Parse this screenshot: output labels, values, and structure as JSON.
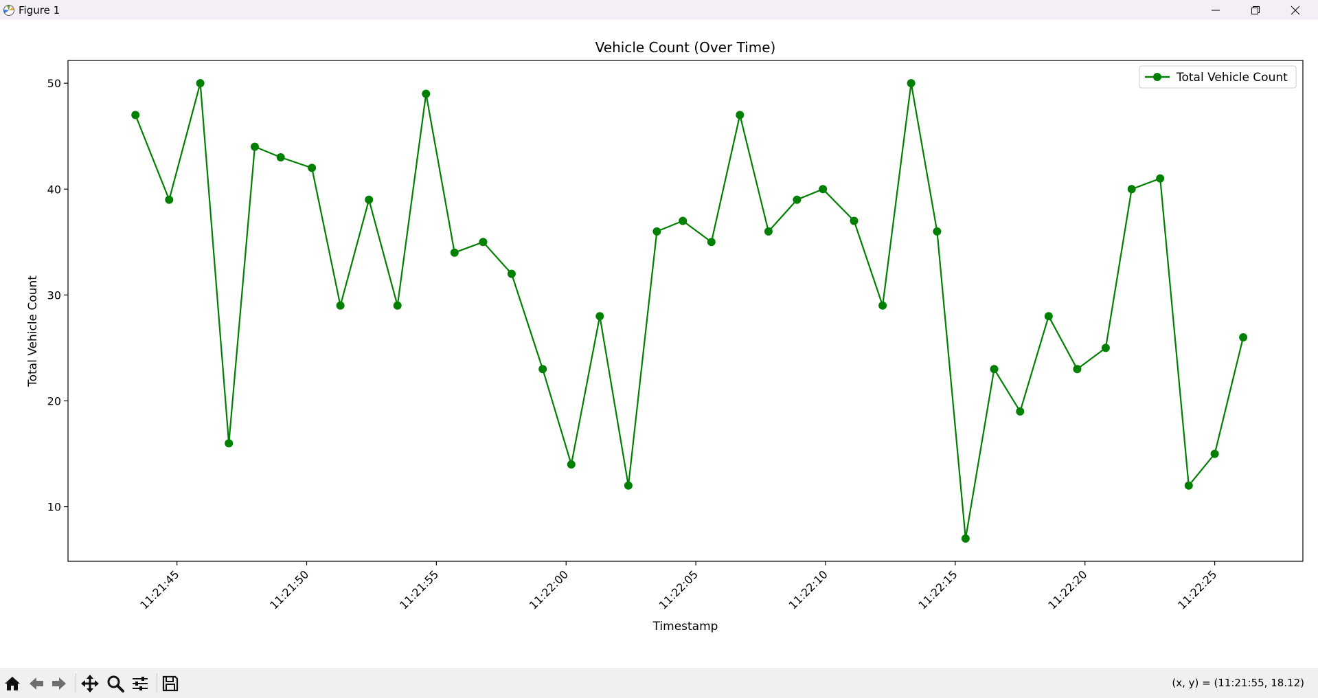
{
  "window": {
    "title": "Figure 1",
    "controls": [
      "minimize",
      "maximize",
      "close"
    ]
  },
  "toolbar": {
    "buttons": [
      "home-icon",
      "back-icon",
      "forward-icon",
      "pan-icon",
      "zoom-icon",
      "configure-subplots-icon",
      "save-icon"
    ],
    "coord_readout": "(x, y) = (11:21:55, 18.12)"
  },
  "chart_data": {
    "type": "line",
    "title": "Vehicle Count (Over Time)",
    "xlabel": "Timestamp",
    "ylabel": "Total Vehicle Count",
    "x_tick_labels": [
      "11:21:45",
      "11:21:50",
      "11:21:55",
      "11:22:00",
      "11:22:05",
      "11:22:10",
      "11:22:15",
      "11:22:20",
      "11:22:25"
    ],
    "y_ticks": [
      10,
      20,
      30,
      40,
      50
    ],
    "xlim": [
      "11:21:40.8",
      "11:22:28.4"
    ],
    "ylim": [
      4.85,
      52.15
    ],
    "legend_position": "upper right",
    "color": "#008000",
    "marker": "circle",
    "grid": false,
    "series": [
      {
        "name": "Total Vehicle Count",
        "x": [
          "11:21:43.4",
          "11:21:44.7",
          "11:21:45.9",
          "11:21:47.0",
          "11:21:48.0",
          "11:21:49.0",
          "11:21:50.2",
          "11:21:51.3",
          "11:21:52.4",
          "11:21:53.5",
          "11:21:54.6",
          "11:21:55.7",
          "11:21:56.8",
          "11:21:57.9",
          "11:21:59.1",
          "11:22:00.2",
          "11:22:01.3",
          "11:22:02.4",
          "11:22:03.5",
          "11:22:04.5",
          "11:22:05.6",
          "11:22:06.7",
          "11:22:07.8",
          "11:22:08.9",
          "11:22:09.9",
          "11:22:11.1",
          "11:22:12.2",
          "11:22:13.3",
          "11:22:14.3",
          "11:22:15.4",
          "11:22:16.5",
          "11:22:17.5",
          "11:22:18.6",
          "11:22:19.7",
          "11:22:20.8",
          "11:22:21.8",
          "11:22:22.9",
          "11:22:24.0",
          "11:22:25.0",
          "11:22:26.1"
        ],
        "values": [
          47,
          39,
          50,
          16,
          44,
          43,
          42,
          29,
          39,
          29,
          49,
          34,
          35,
          32,
          23,
          14,
          28,
          12,
          36,
          37,
          35,
          47,
          36,
          39,
          40,
          37,
          29,
          50,
          36,
          7,
          23,
          19,
          28,
          23,
          25,
          40,
          41,
          12,
          15,
          26
        ]
      }
    ]
  }
}
